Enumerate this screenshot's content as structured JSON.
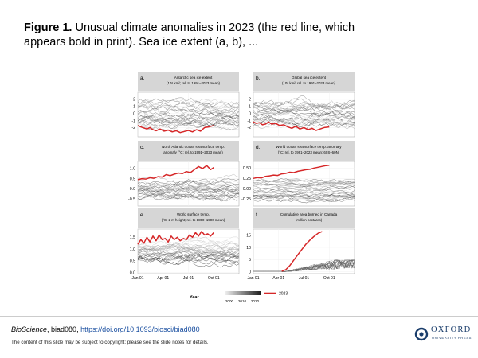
{
  "caption": {
    "label": "Figure 1.",
    "text": " Unusual climate anomalies in 2023 (the red line, which appears bold in print). Sea ice extent (a, b), ..."
  },
  "chart_data": [
    {
      "type": "line",
      "panel": "a.",
      "title_line1": "Antarctic sea ice extent",
      "title_line2": "(10⁶ km²; rel. to 1991–2023 mean)",
      "y_ticks": [
        2,
        1,
        0,
        -1,
        -2
      ],
      "ylim": [
        -3.3,
        3.0
      ],
      "series": [
        {
          "x": [
            0,
            0.03,
            0.06,
            0.09,
            0.12,
            0.15,
            0.18,
            0.22,
            0.26,
            0.3,
            0.34,
            0.38,
            0.42,
            0.46,
            0.5,
            0.54,
            0.58,
            0.62,
            0.66,
            0.7,
            0.75
          ],
          "y": [
            -1.7,
            -1.9,
            -2.05,
            -2.2,
            -2.0,
            -2.3,
            -2.45,
            -2.2,
            -2.5,
            -2.35,
            -2.6,
            -2.45,
            -2.7,
            -2.55,
            -2.4,
            -2.6,
            -2.3,
            -2.5,
            -2.0,
            -1.9,
            -1.7
          ]
        }
      ]
    },
    {
      "type": "line",
      "panel": "b.",
      "title_line1": "Global sea ice extent",
      "title_line2": "(10⁶ km²; rel. to 1991–2023 mean)",
      "y_ticks": [
        2,
        1,
        0,
        -1,
        -2
      ],
      "ylim": [
        -3.3,
        3.0
      ],
      "series": [
        {
          "x": [
            0,
            0.03,
            0.06,
            0.09,
            0.12,
            0.15,
            0.18,
            0.22,
            0.26,
            0.3,
            0.34,
            0.38,
            0.42,
            0.46,
            0.5,
            0.54,
            0.58,
            0.62,
            0.66,
            0.7,
            0.75
          ],
          "y": [
            -1.2,
            -1.4,
            -1.3,
            -1.6,
            -1.5,
            -1.2,
            -1.5,
            -1.4,
            -1.7,
            -1.6,
            -1.9,
            -2.1,
            -1.8,
            -2.2,
            -2.0,
            -2.3,
            -2.1,
            -2.4,
            -2.2,
            -2.0,
            -1.9
          ]
        }
      ]
    },
    {
      "type": "line",
      "panel": "c.",
      "title_line1": "North Atlantic ocean sea surface temp.",
      "title_line2": "anomaly (°C; rel. to 1991–2023 mean)",
      "y_ticks": [
        "1.0",
        "0.5",
        "0.0",
        "-0.5"
      ],
      "ylim": [
        -0.85,
        1.35
      ],
      "series": [
        {
          "x": [
            0,
            0.04,
            0.08,
            0.12,
            0.16,
            0.2,
            0.24,
            0.28,
            0.32,
            0.36,
            0.4,
            0.44,
            0.48,
            0.52,
            0.56,
            0.6,
            0.64,
            0.68,
            0.72,
            0.75
          ],
          "y": [
            0.45,
            0.5,
            0.48,
            0.55,
            0.52,
            0.6,
            0.58,
            0.7,
            0.65,
            0.72,
            0.78,
            0.75,
            0.85,
            0.8,
            0.95,
            1.1,
            1.0,
            1.15,
            0.95,
            1.05
          ]
        }
      ]
    },
    {
      "type": "line",
      "panel": "d.",
      "title_line1": "World ocean sea surface temp. anomaly",
      "title_line2": "(°C; rel. to 1991–2023 mean; 60S–60N)",
      "y_ticks": [
        "0.50",
        "0.25",
        "0.00",
        "-0.25"
      ],
      "ylim": [
        -0.42,
        0.66
      ],
      "series": [
        {
          "x": [
            0,
            0.04,
            0.08,
            0.12,
            0.16,
            0.2,
            0.24,
            0.28,
            0.32,
            0.36,
            0.4,
            0.44,
            0.48,
            0.52,
            0.56,
            0.6,
            0.64,
            0.68,
            0.72,
            0.75
          ],
          "y": [
            0.25,
            0.27,
            0.26,
            0.3,
            0.31,
            0.33,
            0.32,
            0.36,
            0.37,
            0.4,
            0.39,
            0.42,
            0.44,
            0.46,
            0.47,
            0.5,
            0.52,
            0.54,
            0.56,
            0.57
          ]
        }
      ]
    },
    {
      "type": "line",
      "panel": "e.",
      "title_line1": "World surface temp.",
      "title_line2": "(°C; 2 m height; rel. to 1850–1900 mean)",
      "y_ticks": [
        "1.5",
        "1.0",
        "0.5",
        "0.0"
      ],
      "ylim": [
        -0.05,
        1.85
      ],
      "series": [
        {
          "x": [
            0,
            0.03,
            0.06,
            0.09,
            0.12,
            0.15,
            0.18,
            0.21,
            0.24,
            0.27,
            0.3,
            0.33,
            0.36,
            0.39,
            0.42,
            0.45,
            0.48,
            0.51,
            0.54,
            0.57,
            0.6,
            0.63,
            0.66,
            0.69,
            0.72,
            0.75
          ],
          "y": [
            1.2,
            1.4,
            1.25,
            1.5,
            1.3,
            1.55,
            1.35,
            1.6,
            1.4,
            1.45,
            1.3,
            1.55,
            1.4,
            1.5,
            1.35,
            1.45,
            1.4,
            1.6,
            1.5,
            1.7,
            1.55,
            1.75,
            1.6,
            1.65,
            1.55,
            1.7
          ]
        }
      ]
    },
    {
      "type": "line",
      "panel": "f.",
      "title_line1": "Cumulative area burned in Canada",
      "title_line2": "(million hectares)",
      "y_ticks": [
        "15",
        "10",
        "5",
        "0"
      ],
      "ylim": [
        -0.8,
        17.5
      ],
      "series": [
        {
          "x": [
            0.28,
            0.32,
            0.36,
            0.4,
            0.44,
            0.48,
            0.52,
            0.56,
            0.6,
            0.64,
            0.68
          ],
          "y": [
            0.2,
            0.8,
            2.5,
            4.8,
            7.0,
            9.2,
            11.3,
            13.0,
            14.5,
            15.8,
            16.5
          ]
        }
      ]
    }
  ],
  "x_ticks": [
    "Jan 01",
    "Apr 01",
    "Jul 01",
    "Oct 01"
  ],
  "legend": {
    "year_label": "Year",
    "year_ticks": [
      "2000",
      "2010",
      "2020"
    ],
    "series_2023": "2023",
    "red": "#d62728"
  },
  "citation": {
    "journal": "BioScience",
    "id": ", biad080, ",
    "doi": "https://doi.org/10.1093/biosci/biad080"
  },
  "copyright": "The content of this slide may be subject to copyright: please see the slide notes for details.",
  "publisher": {
    "name": "OXFORD",
    "sub": "UNIVERSITY PRESS"
  }
}
